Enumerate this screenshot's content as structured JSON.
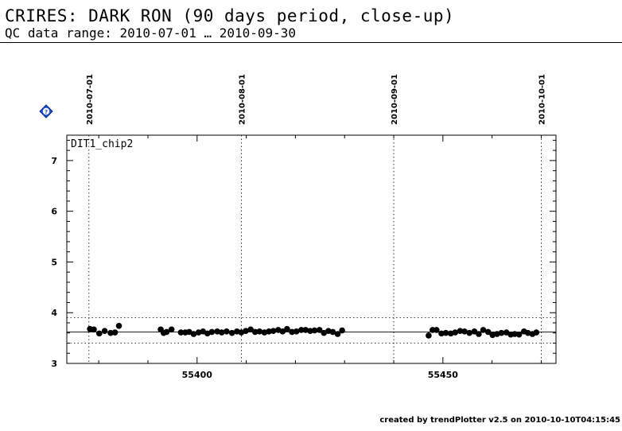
{
  "header": {
    "title": "CRIRES: DARK RON (90 days period, close-up)",
    "subtitle": "QC data range: 2010-07-01 … 2010-09-30"
  },
  "footer": {
    "text": "created by trendPlotter v2.5 on 2010-10-10T04:15:45"
  },
  "icon": {
    "name": "help-diamond-icon",
    "label": "?",
    "color": "#2050d0"
  },
  "chart_data": {
    "type": "scatter",
    "panel_label": "DIT1_chip2",
    "xlim": [
      55373.5,
      55473
    ],
    "ylim": [
      3,
      7.5
    ],
    "xticks": [
      55400,
      55450
    ],
    "yticks": [
      3,
      4,
      5,
      6,
      7
    ],
    "date_markers": [
      {
        "label": "2010-07-01",
        "x": 55378
      },
      {
        "label": "2010-08-01",
        "x": 55409
      },
      {
        "label": "2010-09-01",
        "x": 55440
      },
      {
        "label": "2010-10-01",
        "x": 55470
      }
    ],
    "reference_lines": {
      "median": 3.62,
      "upper": 3.9,
      "lower": 3.4
    },
    "grid": false,
    "series": [
      {
        "points": [
          [
            55378.2,
            3.68
          ],
          [
            55379.0,
            3.67
          ],
          [
            55380.1,
            3.59
          ],
          [
            55381.2,
            3.64
          ],
          [
            55382.4,
            3.6
          ],
          [
            55383.3,
            3.61
          ],
          [
            55384.1,
            3.74
          ],
          [
            55392.6,
            3.67
          ],
          [
            55393.2,
            3.6
          ],
          [
            55393.8,
            3.62
          ],
          [
            55394.8,
            3.67
          ],
          [
            55396.7,
            3.61
          ],
          [
            55397.6,
            3.61
          ],
          [
            55398.4,
            3.62
          ],
          [
            55399.3,
            3.58
          ],
          [
            55400.3,
            3.61
          ],
          [
            55401.2,
            3.63
          ],
          [
            55402.1,
            3.59
          ],
          [
            55403.0,
            3.62
          ],
          [
            55404.1,
            3.63
          ],
          [
            55405.0,
            3.61
          ],
          [
            55406.0,
            3.63
          ],
          [
            55407.1,
            3.6
          ],
          [
            55408.1,
            3.63
          ],
          [
            55409.0,
            3.61
          ],
          [
            55409.9,
            3.64
          ],
          [
            55410.9,
            3.67
          ],
          [
            55411.8,
            3.62
          ],
          [
            55412.7,
            3.63
          ],
          [
            55413.7,
            3.61
          ],
          [
            55414.6,
            3.63
          ],
          [
            55415.5,
            3.64
          ],
          [
            55416.5,
            3.66
          ],
          [
            55417.4,
            3.63
          ],
          [
            55418.3,
            3.68
          ],
          [
            55419.3,
            3.62
          ],
          [
            55420.2,
            3.63
          ],
          [
            55421.2,
            3.66
          ],
          [
            55422.1,
            3.66
          ],
          [
            55423.0,
            3.64
          ],
          [
            55423.9,
            3.65
          ],
          [
            55424.9,
            3.66
          ],
          [
            55425.8,
            3.6
          ],
          [
            55426.7,
            3.64
          ],
          [
            55427.6,
            3.62
          ],
          [
            55428.6,
            3.58
          ],
          [
            55429.5,
            3.65
          ],
          [
            55447.1,
            3.55
          ],
          [
            55447.9,
            3.66
          ],
          [
            55448.7,
            3.66
          ],
          [
            55449.7,
            3.59
          ],
          [
            55450.6,
            3.6
          ],
          [
            55451.6,
            3.59
          ],
          [
            55452.5,
            3.61
          ],
          [
            55453.5,
            3.64
          ],
          [
            55454.4,
            3.63
          ],
          [
            55455.4,
            3.6
          ],
          [
            55456.4,
            3.63
          ],
          [
            55457.3,
            3.58
          ],
          [
            55458.2,
            3.66
          ],
          [
            55459.2,
            3.62
          ],
          [
            55460.1,
            3.56
          ],
          [
            55461.0,
            3.58
          ],
          [
            55461.9,
            3.6
          ],
          [
            55462.9,
            3.61
          ],
          [
            55463.8,
            3.57
          ],
          [
            55464.6,
            3.58
          ],
          [
            55465.5,
            3.57
          ],
          [
            55466.5,
            3.63
          ],
          [
            55467.3,
            3.6
          ],
          [
            55468.2,
            3.58
          ],
          [
            55469.0,
            3.61
          ]
        ]
      }
    ]
  }
}
